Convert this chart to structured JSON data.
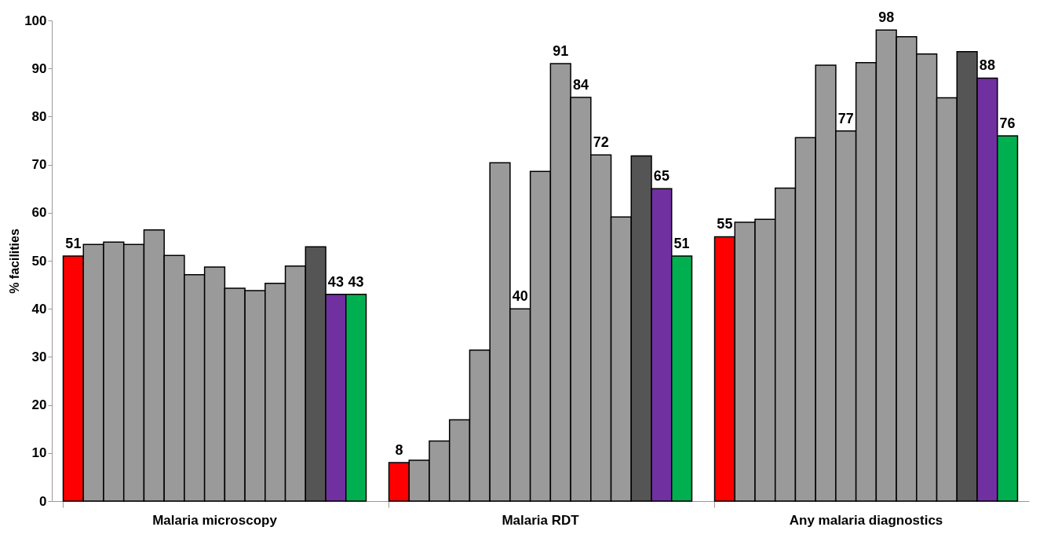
{
  "chart_data": {
    "type": "bar",
    "ylabel": "% facilities",
    "categories": [
      "Malaria microscopy",
      "Malaria RDT",
      "Any malaria diagnostics"
    ],
    "ylim": [
      0,
      100
    ],
    "yticks": [
      0,
      10,
      20,
      30,
      40,
      50,
      60,
      70,
      80,
      90,
      100
    ],
    "series": [
      {
        "color": "#ff0000",
        "values": [
          51,
          8,
          55
        ],
        "value_labels": [
          "51",
          "8",
          "55"
        ]
      },
      {
        "color": "#9a9a9a",
        "values": [
          53.4,
          8.5,
          58.0
        ]
      },
      {
        "color": "#9a9a9a",
        "values": [
          53.9,
          12.5,
          58.6
        ]
      },
      {
        "color": "#9a9a9a",
        "values": [
          53.4,
          16.9,
          65.1
        ]
      },
      {
        "color": "#9a9a9a",
        "values": [
          56.4,
          31.4,
          75.6
        ]
      },
      {
        "color": "#9a9a9a",
        "values": [
          51.1,
          70.4,
          90.7
        ]
      },
      {
        "color": "#9a9a9a",
        "values": [
          47.1,
          40,
          77
        ],
        "value_labels": [
          null,
          "40",
          "77"
        ]
      },
      {
        "color": "#9a9a9a",
        "values": [
          48.7,
          68.6,
          91.2
        ]
      },
      {
        "color": "#9a9a9a",
        "values": [
          44.3,
          91,
          98
        ],
        "value_labels": [
          null,
          "91",
          "98"
        ]
      },
      {
        "color": "#9a9a9a",
        "values": [
          43.8,
          84,
          96.6
        ],
        "value_labels": [
          null,
          "84",
          null
        ]
      },
      {
        "color": "#9a9a9a",
        "values": [
          45.3,
          72,
          93.0
        ],
        "value_labels": [
          null,
          "72",
          null
        ]
      },
      {
        "color": "#9a9a9a",
        "values": [
          48.9,
          59.1,
          83.9
        ]
      },
      {
        "color": "#555555",
        "values": [
          52.9,
          71.8,
          93.5
        ]
      },
      {
        "color": "#7030a0",
        "values": [
          43,
          65,
          88
        ],
        "value_labels": [
          "43",
          "65",
          "88"
        ]
      },
      {
        "color": "#00b050",
        "values": [
          43,
          51,
          76
        ],
        "value_labels": [
          "43",
          "51",
          "76"
        ]
      }
    ]
  }
}
